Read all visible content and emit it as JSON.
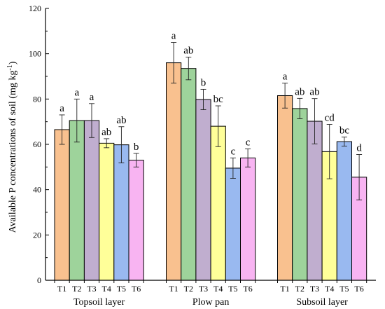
{
  "chart_data": {
    "type": "bar",
    "ylabel": "Available P concentrations of soil (mg kg",
    "ylabel_superscript": "-1",
    "ylabel_suffix": ")",
    "ylim": [
      0,
      120
    ],
    "yticks": [
      0,
      20,
      40,
      60,
      80,
      100,
      120
    ],
    "groups": [
      "Topsoil layer",
      "Plow pan",
      "Subsoil layer"
    ],
    "treatments": [
      "T1",
      "T2",
      "T3",
      "T4",
      "T5",
      "T6"
    ],
    "series": [
      {
        "name": "T1",
        "color": "#F9C18F",
        "values": [
          66.5,
          96,
          81.5
        ],
        "errors": [
          6.5,
          9,
          5.5
        ],
        "letters": [
          "a",
          "a",
          "a"
        ]
      },
      {
        "name": "T2",
        "color": "#9ED39B",
        "values": [
          70.5,
          93.5,
          75.8
        ],
        "errors": [
          9.5,
          5,
          4.5
        ],
        "letters": [
          "a",
          "ab",
          "ab"
        ]
      },
      {
        "name": "T3",
        "color": "#C0AECF",
        "values": [
          70.5,
          79.8,
          70.2
        ],
        "errors": [
          7.5,
          4.5,
          10
        ],
        "letters": [
          "a",
          "b",
          "ab"
        ]
      },
      {
        "name": "T4",
        "color": "#FFFF99",
        "values": [
          60.5,
          68,
          56.8
        ],
        "errors": [
          2,
          9,
          12
        ],
        "letters": [
          "ab",
          "bc",
          "cd"
        ]
      },
      {
        "name": "T5",
        "color": "#99B9F0",
        "values": [
          59.8,
          49.5,
          61.2
        ],
        "errors": [
          8,
          4.5,
          2
        ],
        "letters": [
          "ab",
          "c",
          "bc"
        ]
      },
      {
        "name": "T6",
        "color": "#F8B4F2",
        "values": [
          53,
          54,
          45.5
        ],
        "errors": [
          3,
          4,
          10
        ],
        "letters": [
          "b",
          "c",
          "d"
        ]
      }
    ]
  }
}
